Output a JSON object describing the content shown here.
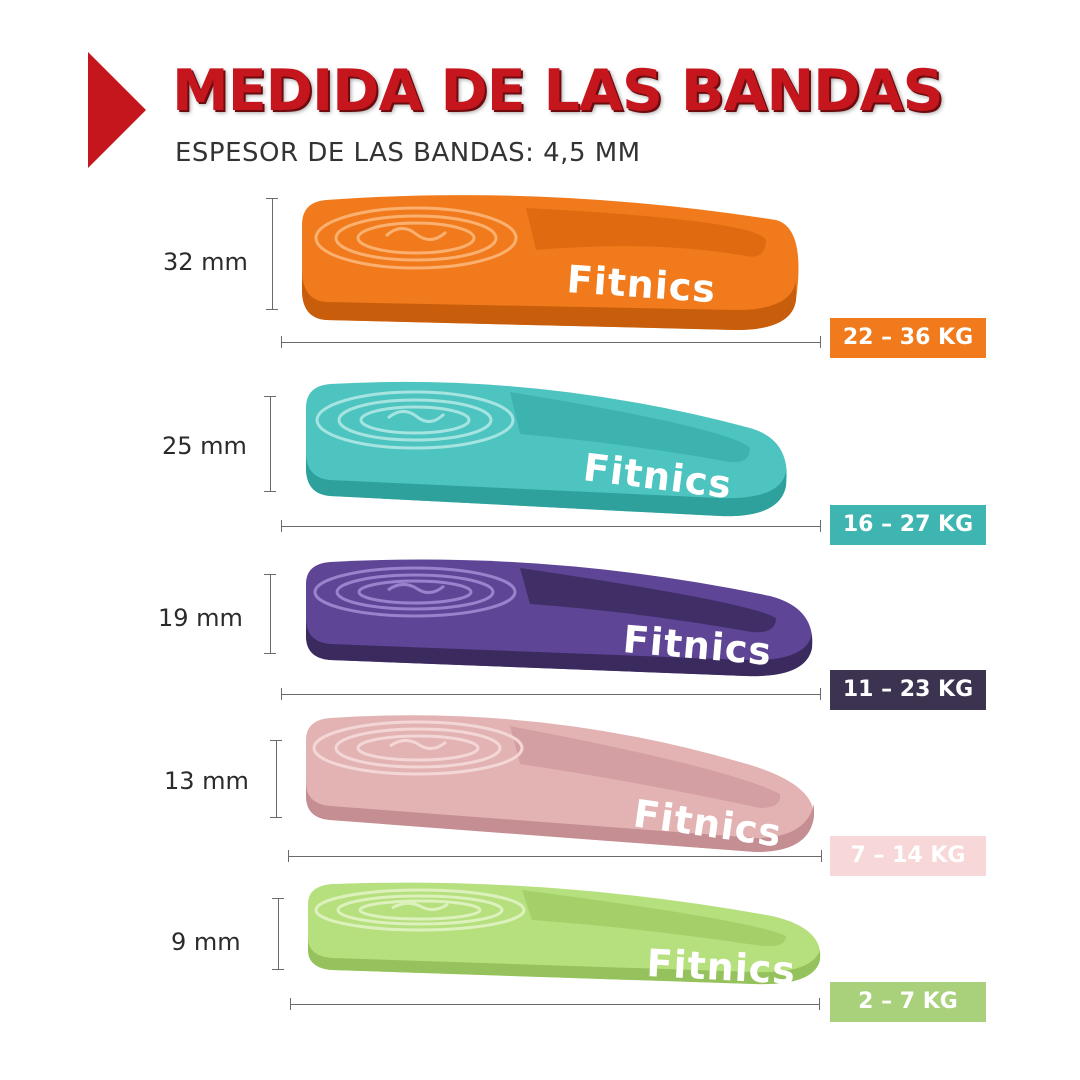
{
  "header": {
    "title": "MEDIDA DE LAS BANDAS",
    "subtitle": "ESPESOR DE LAS BANDAS: 4,5 MM",
    "accent_color": "#c4161c"
  },
  "bands": [
    {
      "width_label": "32 mm",
      "resistance": "22 – 36 KG",
      "brand": "Fitnics",
      "color": "#f07a1c",
      "dark": "#c85e0c",
      "badge_color": "#f07a1c"
    },
    {
      "width_label": "25 mm",
      "resistance": "16 – 27 KG",
      "brand": "Fitnics",
      "color": "#4dc4c0",
      "dark": "#2ea19d",
      "badge_color": "#3fb5b1"
    },
    {
      "width_label": "19 mm",
      "resistance": "11 – 23 KG",
      "brand": "Fitnics",
      "color": "#5e4596",
      "dark": "#3a2a5e",
      "badge_color": "#3b3350"
    },
    {
      "width_label": "13 mm",
      "resistance": "7 – 14 KG",
      "brand": "Fitnics",
      "color": "#e3b3b3",
      "dark": "#c48e92",
      "badge_color": "#f7d7d7"
    },
    {
      "width_label": "9 mm",
      "resistance": "2 – 7 KG",
      "brand": "Fitnics",
      "color": "#b6df7e",
      "dark": "#95c25c",
      "badge_color": "#a9d07a"
    }
  ]
}
